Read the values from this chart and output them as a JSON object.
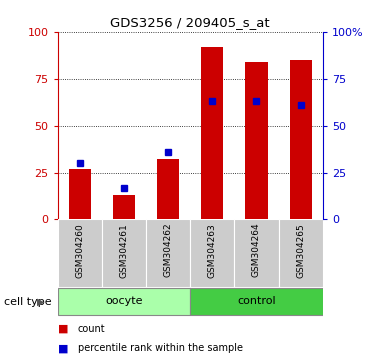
{
  "title": "GDS3256 / 209405_s_at",
  "categories": [
    "GSM304260",
    "GSM304261",
    "GSM304262",
    "GSM304263",
    "GSM304264",
    "GSM304265"
  ],
  "red_values": [
    27,
    13,
    32,
    92,
    84,
    85
  ],
  "blue_values": [
    30,
    17,
    36,
    63,
    63,
    61
  ],
  "red_color": "#cc0000",
  "blue_color": "#0000cc",
  "ylim": [
    0,
    100
  ],
  "yticks": [
    0,
    25,
    50,
    75,
    100
  ],
  "cell_types": [
    {
      "label": "oocyte",
      "start": 0,
      "end": 3,
      "color": "#aaffaa"
    },
    {
      "label": "control",
      "start": 3,
      "end": 6,
      "color": "#44cc44"
    }
  ],
  "cell_type_label": "cell type",
  "legend_items": [
    {
      "label": "count",
      "color": "#cc0000",
      "marker": "s"
    },
    {
      "label": "percentile rank within the sample",
      "color": "#0000cc",
      "marker": "s"
    }
  ],
  "left_ytick_color": "#cc0000",
  "right_ytick_color": "#0000cc",
  "right_ytick_labels": [
    "0",
    "25",
    "50",
    "75",
    "100%"
  ],
  "bar_width": 0.5,
  "grid_color": "black",
  "grid_style": "dotted",
  "bg_xtick": "#cccccc"
}
